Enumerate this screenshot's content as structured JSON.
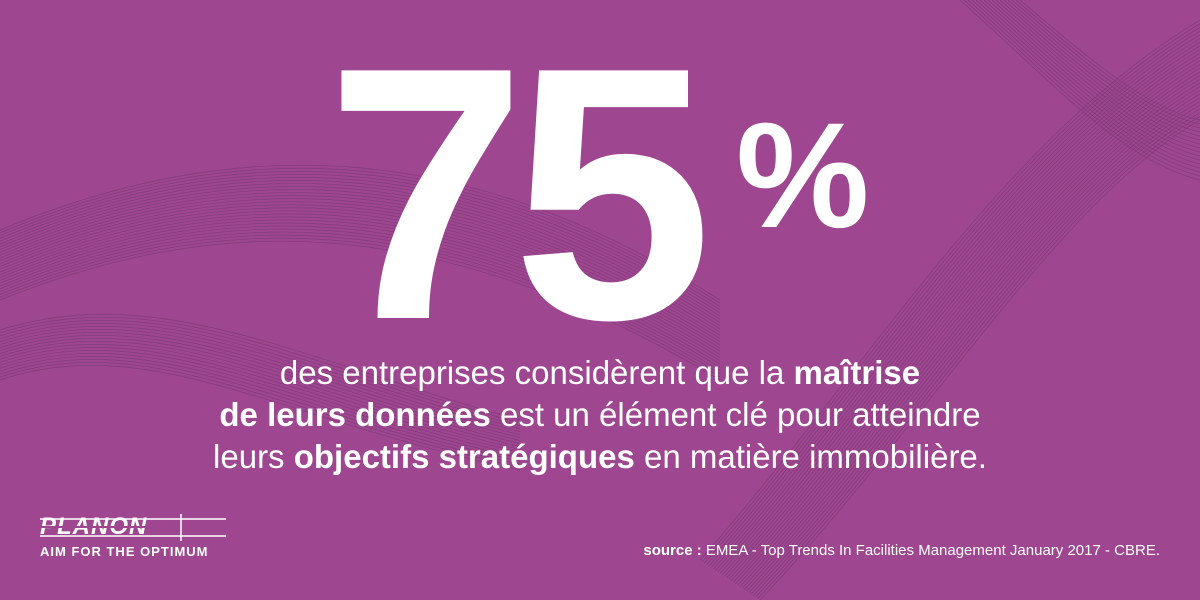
{
  "theme": {
    "background": "#9e468f",
    "wave": "#5f2e63",
    "text": "#ffffff"
  },
  "headline": {
    "number": "75",
    "unit": "%"
  },
  "statement": {
    "line1_regular": "des entreprises considèrent que la ",
    "line1_bold": "maîtrise",
    "line2_bold": "de leurs données",
    "line2_regular": " est un élément clé pour atteindre",
    "line3_regular_a": "leurs ",
    "line3_bold": "objectifs stratégiques",
    "line3_regular_b": " en matière immobilière."
  },
  "logo": {
    "wordmark": "PLANON",
    "tagline": "AIM FOR THE OPTIMUM"
  },
  "source": {
    "label": "source :",
    "text": " EMEA - Top Trends In Facilities Management January 2017 - CBRE."
  }
}
